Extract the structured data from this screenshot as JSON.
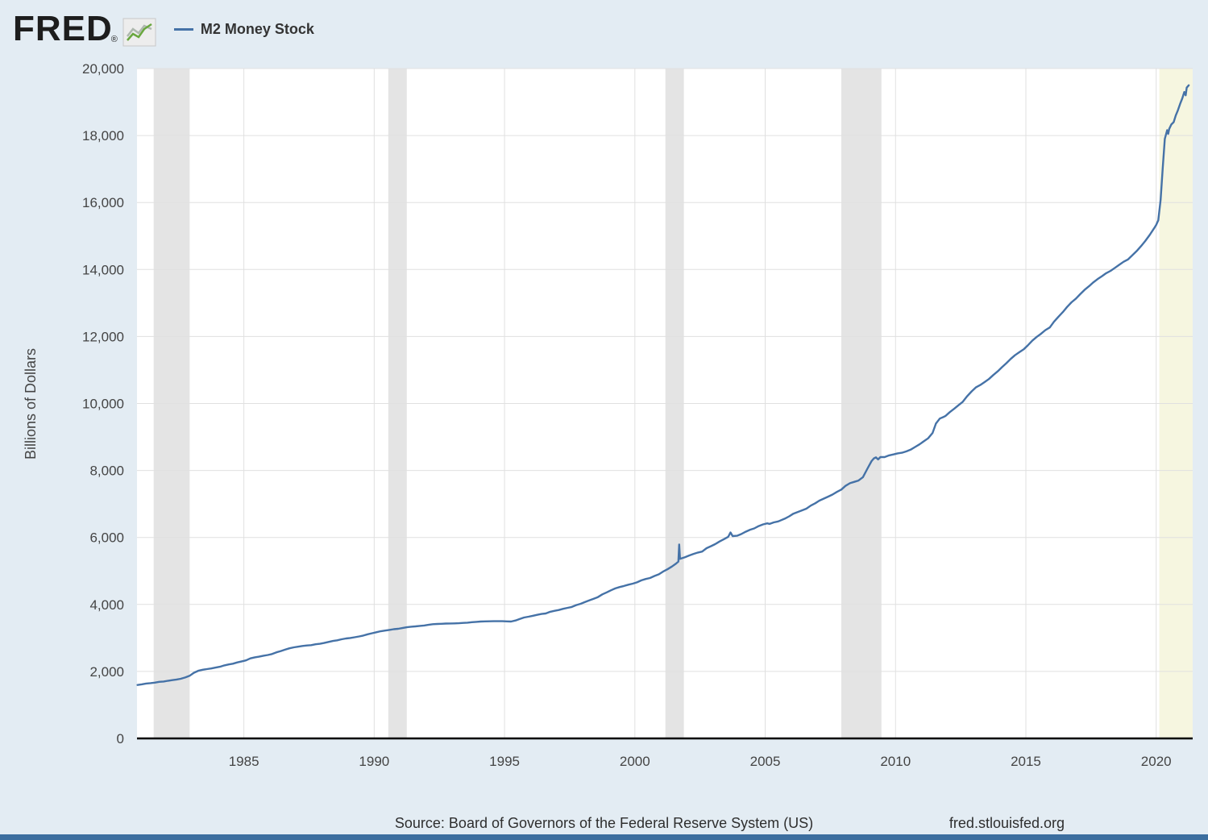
{
  "header": {
    "logo_text": "FRED",
    "registered": "®",
    "legend_label": "M2 Money Stock"
  },
  "y_axis_title": "Billions of Dollars",
  "footer": {
    "source": "Source: Board of Governors of the Federal Reserve System (US)",
    "link": "fred.stlouisfed.org"
  },
  "colors": {
    "background": "#e3ecf3",
    "plot_background": "#ffffff",
    "line": "#4572a7",
    "grid": "#e0e0e0",
    "recession_band": "#e4e4e4",
    "recent_band": "#f6f6e0",
    "axis_line": "#000000",
    "tick_text": "#444444",
    "bottom_bar": "#3c6e9f",
    "logo_icon_green": "#69a73e",
    "logo_icon_gray": "#aeb8ae"
  },
  "chart_data": {
    "type": "line",
    "title": "M2 Money Stock",
    "ylabel": "Billions of Dollars",
    "xlabel": "",
    "x_range": [
      1980.9,
      2021.4
    ],
    "y_range": [
      0,
      20000
    ],
    "y_ticks": [
      0,
      2000,
      4000,
      6000,
      8000,
      10000,
      12000,
      14000,
      16000,
      18000,
      20000
    ],
    "x_ticks": [
      1985,
      1990,
      1995,
      2000,
      2005,
      2010,
      2015,
      2020
    ],
    "grid": true,
    "legend_position": "top-left",
    "recession_bands": [
      [
        1981.54,
        1982.92
      ],
      [
        1990.54,
        1991.25
      ],
      [
        2001.17,
        2001.88
      ],
      [
        2007.92,
        2009.46
      ]
    ],
    "recent_recession_band": [
      2020.12,
      2021.4
    ],
    "points": [
      [
        1980.92,
        1595
      ],
      [
        1981.08,
        1615
      ],
      [
        1981.25,
        1640
      ],
      [
        1981.42,
        1652
      ],
      [
        1981.58,
        1665
      ],
      [
        1981.75,
        1690
      ],
      [
        1981.92,
        1700
      ],
      [
        1982.08,
        1720
      ],
      [
        1982.25,
        1740
      ],
      [
        1982.42,
        1760
      ],
      [
        1982.58,
        1780
      ],
      [
        1982.75,
        1820
      ],
      [
        1982.92,
        1870
      ],
      [
        1983.08,
        1960
      ],
      [
        1983.25,
        2020
      ],
      [
        1983.42,
        2050
      ],
      [
        1983.58,
        2070
      ],
      [
        1983.75,
        2090
      ],
      [
        1983.92,
        2115
      ],
      [
        1984.08,
        2140
      ],
      [
        1984.25,
        2180
      ],
      [
        1984.42,
        2210
      ],
      [
        1984.58,
        2230
      ],
      [
        1984.75,
        2270
      ],
      [
        1984.92,
        2300
      ],
      [
        1985.08,
        2330
      ],
      [
        1985.25,
        2390
      ],
      [
        1985.42,
        2420
      ],
      [
        1985.58,
        2440
      ],
      [
        1985.75,
        2470
      ],
      [
        1985.92,
        2490
      ],
      [
        1986.08,
        2520
      ],
      [
        1986.25,
        2570
      ],
      [
        1986.42,
        2610
      ],
      [
        1986.58,
        2650
      ],
      [
        1986.75,
        2690
      ],
      [
        1986.92,
        2720
      ],
      [
        1987.08,
        2740
      ],
      [
        1987.25,
        2760
      ],
      [
        1987.42,
        2775
      ],
      [
        1987.58,
        2785
      ],
      [
        1987.75,
        2810
      ],
      [
        1987.92,
        2825
      ],
      [
        1988.08,
        2850
      ],
      [
        1988.25,
        2880
      ],
      [
        1988.42,
        2910
      ],
      [
        1988.58,
        2930
      ],
      [
        1988.75,
        2960
      ],
      [
        1988.92,
        2985
      ],
      [
        1989.08,
        3000
      ],
      [
        1989.25,
        3020
      ],
      [
        1989.42,
        3045
      ],
      [
        1989.58,
        3070
      ],
      [
        1989.75,
        3110
      ],
      [
        1989.92,
        3140
      ],
      [
        1990.08,
        3170
      ],
      [
        1990.25,
        3200
      ],
      [
        1990.42,
        3220
      ],
      [
        1990.58,
        3240
      ],
      [
        1990.75,
        3260
      ],
      [
        1990.92,
        3272
      ],
      [
        1991.08,
        3295
      ],
      [
        1991.25,
        3320
      ],
      [
        1991.42,
        3335
      ],
      [
        1991.58,
        3345
      ],
      [
        1991.75,
        3360
      ],
      [
        1991.92,
        3372
      ],
      [
        1992.08,
        3390
      ],
      [
        1992.25,
        3410
      ],
      [
        1992.42,
        3418
      ],
      [
        1992.58,
        3422
      ],
      [
        1992.75,
        3430
      ],
      [
        1992.92,
        3432
      ],
      [
        1993.08,
        3435
      ],
      [
        1993.25,
        3440
      ],
      [
        1993.42,
        3448
      ],
      [
        1993.58,
        3455
      ],
      [
        1993.75,
        3470
      ],
      [
        1993.92,
        3480
      ],
      [
        1994.08,
        3490
      ],
      [
        1994.25,
        3495
      ],
      [
        1994.42,
        3498
      ],
      [
        1994.58,
        3500
      ],
      [
        1994.75,
        3500
      ],
      [
        1994.92,
        3500
      ],
      [
        1995.08,
        3495
      ],
      [
        1995.25,
        3490
      ],
      [
        1995.42,
        3520
      ],
      [
        1995.58,
        3565
      ],
      [
        1995.75,
        3610
      ],
      [
        1995.92,
        3635
      ],
      [
        1996.08,
        3660
      ],
      [
        1996.25,
        3690
      ],
      [
        1996.42,
        3715
      ],
      [
        1996.58,
        3730
      ],
      [
        1996.75,
        3780
      ],
      [
        1996.92,
        3810
      ],
      [
        1997.08,
        3835
      ],
      [
        1997.25,
        3870
      ],
      [
        1997.42,
        3900
      ],
      [
        1997.58,
        3925
      ],
      [
        1997.75,
        3980
      ],
      [
        1997.92,
        4020
      ],
      [
        1998.08,
        4070
      ],
      [
        1998.25,
        4120
      ],
      [
        1998.42,
        4170
      ],
      [
        1998.58,
        4220
      ],
      [
        1998.75,
        4300
      ],
      [
        1998.92,
        4360
      ],
      [
        1999.08,
        4420
      ],
      [
        1999.25,
        4480
      ],
      [
        1999.42,
        4520
      ],
      [
        1999.58,
        4550
      ],
      [
        1999.75,
        4590
      ],
      [
        1999.92,
        4620
      ],
      [
        2000.08,
        4660
      ],
      [
        2000.25,
        4720
      ],
      [
        2000.42,
        4760
      ],
      [
        2000.58,
        4790
      ],
      [
        2000.75,
        4850
      ],
      [
        2000.92,
        4900
      ],
      [
        2001.08,
        4980
      ],
      [
        2001.25,
        5050
      ],
      [
        2001.42,
        5130
      ],
      [
        2001.58,
        5220
      ],
      [
        2001.67,
        5280
      ],
      [
        2001.7,
        5790
      ],
      [
        2001.73,
        5360
      ],
      [
        2001.92,
        5410
      ],
      [
        2002.08,
        5460
      ],
      [
        2002.25,
        5510
      ],
      [
        2002.42,
        5550
      ],
      [
        2002.58,
        5580
      ],
      [
        2002.75,
        5680
      ],
      [
        2002.92,
        5740
      ],
      [
        2003.08,
        5800
      ],
      [
        2003.25,
        5880
      ],
      [
        2003.42,
        5950
      ],
      [
        2003.58,
        6020
      ],
      [
        2003.67,
        6150
      ],
      [
        2003.75,
        6040
      ],
      [
        2003.92,
        6050
      ],
      [
        2004.08,
        6100
      ],
      [
        2004.25,
        6170
      ],
      [
        2004.42,
        6230
      ],
      [
        2004.58,
        6270
      ],
      [
        2004.75,
        6340
      ],
      [
        2004.92,
        6390
      ],
      [
        2005.08,
        6420
      ],
      [
        2005.17,
        6405
      ],
      [
        2005.33,
        6450
      ],
      [
        2005.5,
        6480
      ],
      [
        2005.75,
        6560
      ],
      [
        2005.92,
        6630
      ],
      [
        2006.08,
        6710
      ],
      [
        2006.25,
        6760
      ],
      [
        2006.42,
        6810
      ],
      [
        2006.58,
        6860
      ],
      [
        2006.75,
        6950
      ],
      [
        2006.92,
        7020
      ],
      [
        2007.08,
        7100
      ],
      [
        2007.25,
        7160
      ],
      [
        2007.42,
        7220
      ],
      [
        2007.58,
        7280
      ],
      [
        2007.75,
        7360
      ],
      [
        2007.92,
        7430
      ],
      [
        2008.08,
        7540
      ],
      [
        2008.25,
        7620
      ],
      [
        2008.42,
        7660
      ],
      [
        2008.58,
        7700
      ],
      [
        2008.75,
        7800
      ],
      [
        2008.92,
        8050
      ],
      [
        2009.08,
        8280
      ],
      [
        2009.17,
        8360
      ],
      [
        2009.25,
        8390
      ],
      [
        2009.33,
        8330
      ],
      [
        2009.42,
        8400
      ],
      [
        2009.58,
        8400
      ],
      [
        2009.75,
        8450
      ],
      [
        2009.92,
        8480
      ],
      [
        2010.08,
        8510
      ],
      [
        2010.25,
        8530
      ],
      [
        2010.42,
        8570
      ],
      [
        2010.58,
        8620
      ],
      [
        2010.75,
        8700
      ],
      [
        2010.92,
        8780
      ],
      [
        2011.08,
        8870
      ],
      [
        2011.25,
        8960
      ],
      [
        2011.42,
        9120
      ],
      [
        2011.55,
        9400
      ],
      [
        2011.7,
        9550
      ],
      [
        2011.85,
        9600
      ],
      [
        2011.92,
        9630
      ],
      [
        2012.08,
        9740
      ],
      [
        2012.25,
        9840
      ],
      [
        2012.42,
        9950
      ],
      [
        2012.58,
        10050
      ],
      [
        2012.75,
        10220
      ],
      [
        2012.92,
        10360
      ],
      [
        2013.08,
        10480
      ],
      [
        2013.25,
        10550
      ],
      [
        2013.42,
        10640
      ],
      [
        2013.58,
        10730
      ],
      [
        2013.75,
        10850
      ],
      [
        2013.92,
        10960
      ],
      [
        2014.08,
        11080
      ],
      [
        2014.25,
        11200
      ],
      [
        2014.42,
        11330
      ],
      [
        2014.58,
        11440
      ],
      [
        2014.75,
        11530
      ],
      [
        2014.92,
        11620
      ],
      [
        2015.08,
        11740
      ],
      [
        2015.25,
        11880
      ],
      [
        2015.42,
        11990
      ],
      [
        2015.58,
        12080
      ],
      [
        2015.75,
        12190
      ],
      [
        2015.92,
        12270
      ],
      [
        2016.08,
        12440
      ],
      [
        2016.25,
        12590
      ],
      [
        2016.42,
        12730
      ],
      [
        2016.58,
        12880
      ],
      [
        2016.75,
        13020
      ],
      [
        2016.92,
        13130
      ],
      [
        2017.08,
        13260
      ],
      [
        2017.25,
        13390
      ],
      [
        2017.42,
        13500
      ],
      [
        2017.58,
        13610
      ],
      [
        2017.75,
        13710
      ],
      [
        2017.92,
        13800
      ],
      [
        2018.08,
        13890
      ],
      [
        2018.25,
        13960
      ],
      [
        2018.42,
        14050
      ],
      [
        2018.58,
        14140
      ],
      [
        2018.75,
        14230
      ],
      [
        2018.92,
        14300
      ],
      [
        2019.08,
        14420
      ],
      [
        2019.25,
        14550
      ],
      [
        2019.42,
        14700
      ],
      [
        2019.58,
        14850
      ],
      [
        2019.75,
        15030
      ],
      [
        2019.92,
        15230
      ],
      [
        2020.0,
        15330
      ],
      [
        2020.08,
        15470
      ],
      [
        2020.17,
        16080
      ],
      [
        2020.25,
        17020
      ],
      [
        2020.33,
        17900
      ],
      [
        2020.42,
        18160
      ],
      [
        2020.46,
        18050
      ],
      [
        2020.5,
        18200
      ],
      [
        2020.58,
        18330
      ],
      [
        2020.67,
        18400
      ],
      [
        2020.75,
        18600
      ],
      [
        2020.83,
        18750
      ],
      [
        2020.92,
        18950
      ],
      [
        2021.0,
        19110
      ],
      [
        2021.08,
        19300
      ],
      [
        2021.13,
        19200
      ],
      [
        2021.17,
        19430
      ],
      [
        2021.25,
        19500
      ]
    ]
  }
}
